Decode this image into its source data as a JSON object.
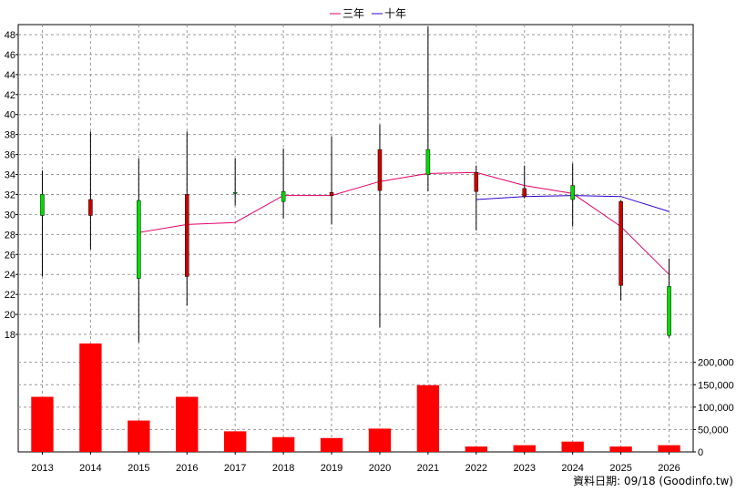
{
  "chart_data": {
    "type": "candlestick",
    "legend": [
      {
        "name": "三年",
        "color": "#e0006a"
      },
      {
        "name": "十年",
        "color": "#3300cc"
      }
    ],
    "categories": [
      "2013",
      "2014",
      "2015",
      "2016",
      "2017",
      "2018",
      "2019",
      "2020",
      "2021",
      "2022",
      "2023",
      "2024",
      "2025",
      "2026"
    ],
    "price_axis": {
      "min": 17,
      "max": 49,
      "ticks": [
        18,
        20,
        22,
        24,
        26,
        28,
        30,
        32,
        34,
        36,
        38,
        40,
        42,
        44,
        46,
        48
      ],
      "position": "left"
    },
    "volume_axis": {
      "min": 0,
      "max": 240000,
      "ticks": [
        0,
        50000,
        100000,
        150000,
        200000
      ],
      "tick_labels": [
        "0",
        "50,000",
        "100,000",
        "150,000",
        "200,000"
      ],
      "position": "right"
    },
    "candles": [
      {
        "year": "2013",
        "open": 29.9,
        "high": 34.4,
        "low": 23.8,
        "close": 32.0
      },
      {
        "year": "2014",
        "open": 31.5,
        "high": 38.3,
        "low": 26.5,
        "close": 29.9
      },
      {
        "year": "2015",
        "open": 23.6,
        "high": 35.6,
        "low": 17.2,
        "close": 31.4
      },
      {
        "year": "2016",
        "open": 32.0,
        "high": 38.3,
        "low": 20.9,
        "close": 23.8
      },
      {
        "year": "2017",
        "open": 32.2,
        "high": 35.6,
        "low": 30.9,
        "close": 32.2
      },
      {
        "year": "2018",
        "open": 31.3,
        "high": 36.6,
        "low": 29.6,
        "close": 32.3
      },
      {
        "year": "2019",
        "open": 32.2,
        "high": 37.8,
        "low": 29.0,
        "close": 31.9
      },
      {
        "year": "2020",
        "open": 36.5,
        "high": 39.0,
        "low": 18.7,
        "close": 32.4
      },
      {
        "year": "2021",
        "open": 34.0,
        "high": 48.8,
        "low": 32.3,
        "close": 36.5
      },
      {
        "year": "2022",
        "open": 34.2,
        "high": 34.9,
        "low": 28.4,
        "close": 32.3
      },
      {
        "year": "2023",
        "open": 32.6,
        "high": 34.9,
        "low": 31.6,
        "close": 31.8
      },
      {
        "year": "2024",
        "open": 31.5,
        "high": 35.1,
        "low": 28.8,
        "close": 32.9
      },
      {
        "year": "2025",
        "open": 31.3,
        "high": 31.4,
        "low": 21.4,
        "close": 22.9
      },
      {
        "year": "2026",
        "open": 17.9,
        "high": 25.6,
        "low": 17.7,
        "close": 22.8
      }
    ],
    "volume": [
      123000,
      242000,
      70000,
      123000,
      46000,
      33000,
      31000,
      52000,
      149000,
      12000,
      15000,
      23000,
      12000,
      15000
    ],
    "ma_three_year": [
      null,
      null,
      28.2,
      29.0,
      29.2,
      31.9,
      31.9,
      33.3,
      34.1,
      34.2,
      32.9,
      32.1,
      28.8,
      24.0
    ],
    "ma_ten_year": [
      null,
      null,
      null,
      null,
      null,
      null,
      null,
      null,
      null,
      31.5,
      31.8,
      31.9,
      31.8,
      30.3
    ],
    "up_color": "#00dd00",
    "down_color": "#cc0000",
    "volume_color": "#ff0000"
  },
  "footer_note": "資料日期: 09/18  (Goodinfo.tw)"
}
